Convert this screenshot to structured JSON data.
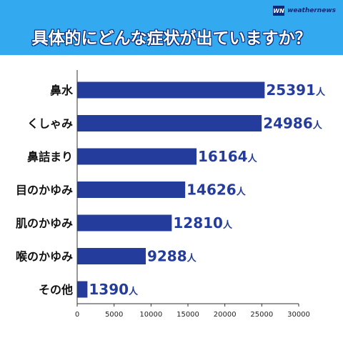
{
  "header": {
    "brand": "weathernews",
    "brand_mark": "WN",
    "title": "具体的にどんな症状が出ていますか？"
  },
  "colors": {
    "bar": "#243c9c",
    "banner": "#33aaf0",
    "value_text": "#243c9c"
  },
  "chart_data": {
    "type": "bar",
    "orientation": "horizontal",
    "title": "具体的にどんな症状が出ていますか？",
    "categories": [
      "鼻水",
      "くしゃみ",
      "鼻詰まり",
      "目のかゆみ",
      "肌のかゆみ",
      "喉のかゆみ",
      "その他"
    ],
    "values": [
      25391,
      24986,
      16164,
      14626,
      12810,
      9288,
      1390
    ],
    "value_suffix": "人",
    "xlim": [
      0,
      30000
    ],
    "xticks": [
      0,
      5000,
      10000,
      15000,
      20000,
      25000,
      30000
    ],
    "xlabel": "",
    "ylabel": "",
    "grid": false
  }
}
